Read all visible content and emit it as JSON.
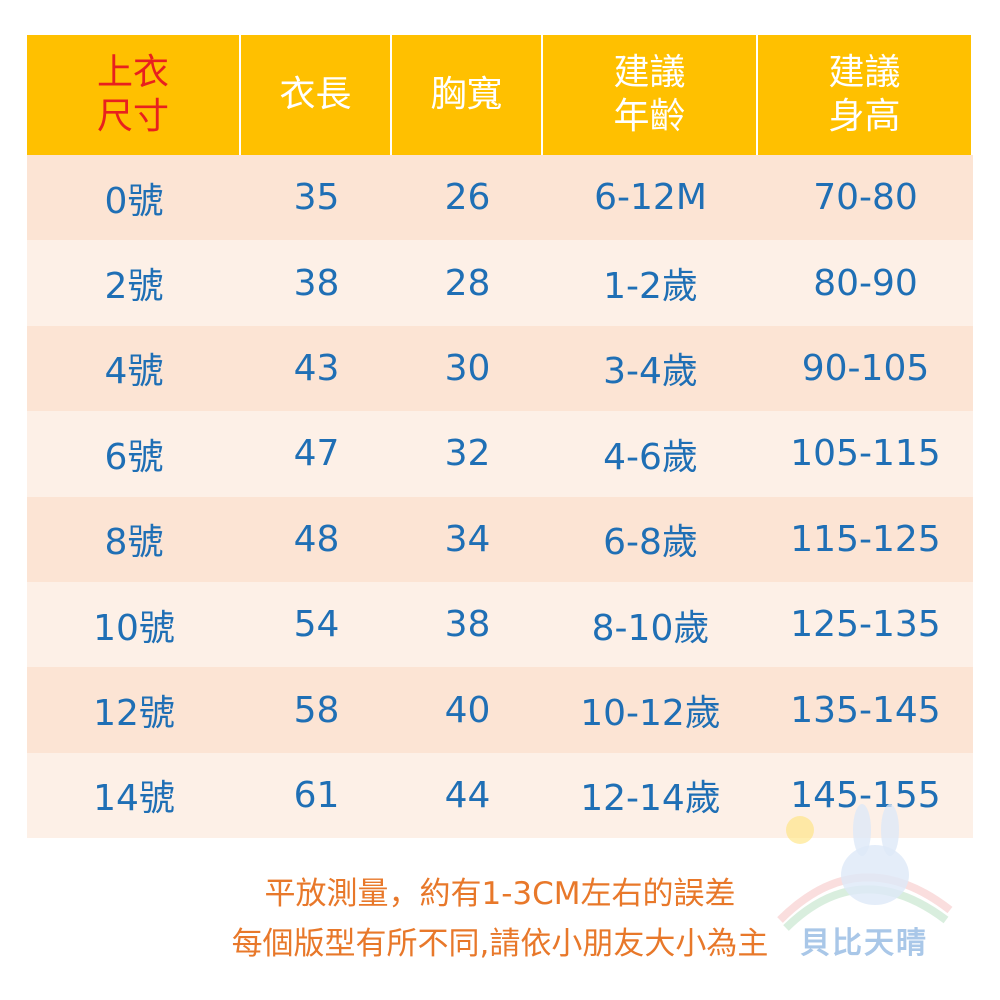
{
  "table": {
    "header": [
      [
        "上衣",
        "尺寸"
      ],
      [
        "衣長"
      ],
      [
        "胸寬"
      ],
      [
        "建議",
        "年齡"
      ],
      [
        "建議",
        "身高"
      ]
    ],
    "rows": [
      [
        "0號",
        "35",
        "26",
        "6-12M",
        "70-80"
      ],
      [
        "2號",
        "38",
        "28",
        "1-2歲",
        "80-90"
      ],
      [
        "4號",
        "43",
        "30",
        "3-4歲",
        "90-105"
      ],
      [
        "6號",
        "47",
        "32",
        "4-6歲",
        "105-115"
      ],
      [
        "8號",
        "48",
        "34",
        "6-8歲",
        "115-125"
      ],
      [
        "10號",
        "54",
        "38",
        "8-10歲",
        "125-135"
      ],
      [
        "12號",
        "58",
        "40",
        "10-12歲",
        "135-145"
      ],
      [
        "14號",
        "61",
        "44",
        "12-14歲",
        "145-155"
      ]
    ]
  },
  "notes": [
    "平放測量，約有1-3CM左右的誤差",
    "每個版型有所不同,請依小朋友大小為主"
  ],
  "logo": "貝比天晴"
}
